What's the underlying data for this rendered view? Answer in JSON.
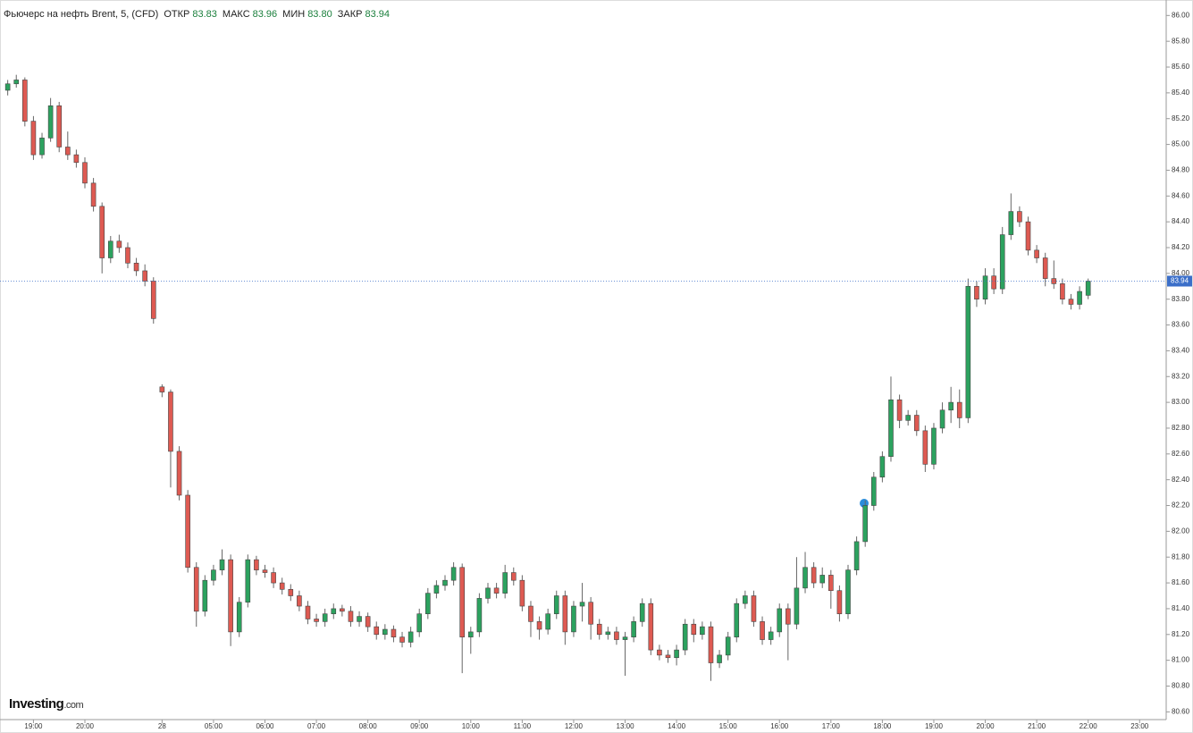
{
  "chart_data": {
    "type": "candlestick",
    "title": "Фьючерс на нефть Brent, 5, (CFD)",
    "ohlc_legend": [
      {
        "label": "ОТКР",
        "value": "83.83"
      },
      {
        "label": "МАКС",
        "value": "83.96"
      },
      {
        "label": "МИН",
        "value": "83.80"
      },
      {
        "label": "ЗАКР",
        "value": "83.94"
      }
    ],
    "logo": {
      "main": "Investing",
      "suffix": ".com"
    },
    "up_color": "#2ca25f",
    "down_color": "#de5a52",
    "last_price": {
      "value": 83.94,
      "label": "83.94"
    },
    "xlim": [
      -0.9,
      135.1
    ],
    "xticks": [
      {
        "value": 3,
        "label": "19:00"
      },
      {
        "value": 9,
        "label": "20:00"
      },
      {
        "value": 18,
        "label": "28"
      },
      {
        "value": 24,
        "label": "05:00"
      },
      {
        "value": 30,
        "label": "06:00"
      },
      {
        "value": 36,
        "label": "07:00"
      },
      {
        "value": 42,
        "label": "08:00"
      },
      {
        "value": 48,
        "label": "09:00"
      },
      {
        "value": 54,
        "label": "10:00"
      },
      {
        "value": 60,
        "label": "11:00"
      },
      {
        "value": 66,
        "label": "12:00"
      },
      {
        "value": 72,
        "label": "13:00"
      },
      {
        "value": 78,
        "label": "14:00"
      },
      {
        "value": 84,
        "label": "15:00"
      },
      {
        "value": 90,
        "label": "16:00"
      },
      {
        "value": 96,
        "label": "17:00"
      },
      {
        "value": 102,
        "label": "18:00"
      },
      {
        "value": 108,
        "label": "19:00"
      },
      {
        "value": 114,
        "label": "20:00"
      },
      {
        "value": 120,
        "label": "21:00"
      },
      {
        "value": 126,
        "label": "22:00"
      },
      {
        "value": 132,
        "label": "23:00"
      }
    ],
    "ylim": [
      80.54,
      86.12
    ],
    "yticks": [
      {
        "value": 80.6,
        "label": "80.60"
      },
      {
        "value": 80.8,
        "label": "80.80"
      },
      {
        "value": 81.0,
        "label": "81.00"
      },
      {
        "value": 81.2,
        "label": "81.20"
      },
      {
        "value": 81.4,
        "label": "81.40"
      },
      {
        "value": 81.6,
        "label": "81.60"
      },
      {
        "value": 81.8,
        "label": "81.80"
      },
      {
        "value": 82.0,
        "label": "82.00"
      },
      {
        "value": 82.2,
        "label": "82.20"
      },
      {
        "value": 82.4,
        "label": "82.40"
      },
      {
        "value": 82.6,
        "label": "82.60"
      },
      {
        "value": 82.8,
        "label": "82.80"
      },
      {
        "value": 83.0,
        "label": "83.00"
      },
      {
        "value": 83.2,
        "label": "83.20"
      },
      {
        "value": 83.4,
        "label": "83.40"
      },
      {
        "value": 83.6,
        "label": "83.60"
      },
      {
        "value": 83.8,
        "label": "83.80"
      },
      {
        "value": 84.0,
        "label": "84.00"
      },
      {
        "value": 84.2,
        "label": "84.20"
      },
      {
        "value": 84.4,
        "label": "84.40"
      },
      {
        "value": 84.6,
        "label": "84.60"
      },
      {
        "value": 84.8,
        "label": "84.80"
      },
      {
        "value": 85.0,
        "label": "85.00"
      },
      {
        "value": 85.2,
        "label": "85.20"
      },
      {
        "value": 85.4,
        "label": "85.40"
      },
      {
        "value": 85.6,
        "label": "85.60"
      },
      {
        "value": 85.8,
        "label": "85.80"
      },
      {
        "value": 86.0,
        "label": "86.00"
      }
    ],
    "candles": [
      [
        85.42,
        85.5,
        85.38,
        85.47
      ],
      [
        85.47,
        85.54,
        85.44,
        85.5
      ],
      [
        85.5,
        85.52,
        85.14,
        85.18
      ],
      [
        85.18,
        85.22,
        84.88,
        84.92
      ],
      [
        84.92,
        85.09,
        84.89,
        85.05
      ],
      [
        85.05,
        85.36,
        85.02,
        85.3
      ],
      [
        85.3,
        85.33,
        84.94,
        84.98
      ],
      [
        84.98,
        85.1,
        84.88,
        84.92
      ],
      [
        84.92,
        84.96,
        84.82,
        84.86
      ],
      [
        84.86,
        84.9,
        84.66,
        84.7
      ],
      [
        84.7,
        84.74,
        84.48,
        84.52
      ],
      [
        84.52,
        84.55,
        84.0,
        84.12
      ],
      [
        84.12,
        84.29,
        84.08,
        84.25
      ],
      [
        84.25,
        84.3,
        84.16,
        84.2
      ],
      [
        84.2,
        84.24,
        84.04,
        84.08
      ],
      [
        84.08,
        84.12,
        83.98,
        84.02
      ],
      [
        84.02,
        84.07,
        83.9,
        83.94
      ],
      [
        83.94,
        83.97,
        83.61,
        83.65
      ],
      [
        83.12,
        83.14,
        83.04,
        83.08
      ],
      [
        83.08,
        83.1,
        82.34,
        82.62
      ],
      [
        82.62,
        82.66,
        82.24,
        82.28
      ],
      [
        82.28,
        82.32,
        81.68,
        81.72
      ],
      [
        81.72,
        81.76,
        81.26,
        81.38
      ],
      [
        81.38,
        81.66,
        81.34,
        81.62
      ],
      [
        81.62,
        81.74,
        81.58,
        81.7
      ],
      [
        81.7,
        81.86,
        81.66,
        81.78
      ],
      [
        81.78,
        81.82,
        81.11,
        81.22
      ],
      [
        81.22,
        81.49,
        81.18,
        81.45
      ],
      [
        81.45,
        81.82,
        81.41,
        81.78
      ],
      [
        81.78,
        81.81,
        81.66,
        81.7
      ],
      [
        81.7,
        81.74,
        81.64,
        81.68
      ],
      [
        81.68,
        81.72,
        81.56,
        81.6
      ],
      [
        81.6,
        81.64,
        81.51,
        81.55
      ],
      [
        81.55,
        81.59,
        81.46,
        81.5
      ],
      [
        81.5,
        81.54,
        81.38,
        81.42
      ],
      [
        81.42,
        81.46,
        81.28,
        81.32
      ],
      [
        81.32,
        81.36,
        81.26,
        81.3
      ],
      [
        81.3,
        81.4,
        81.26,
        81.36
      ],
      [
        81.36,
        81.44,
        81.32,
        81.4
      ],
      [
        81.4,
        81.43,
        81.34,
        81.38
      ],
      [
        81.38,
        81.42,
        81.26,
        81.3
      ],
      [
        81.3,
        81.38,
        81.26,
        81.34
      ],
      [
        81.34,
        81.37,
        81.22,
        81.26
      ],
      [
        81.26,
        81.3,
        81.16,
        81.2
      ],
      [
        81.2,
        81.28,
        81.16,
        81.24
      ],
      [
        81.24,
        81.27,
        81.14,
        81.18
      ],
      [
        81.18,
        81.22,
        81.1,
        81.14
      ],
      [
        81.14,
        81.26,
        81.1,
        81.22
      ],
      [
        81.22,
        81.4,
        81.18,
        81.36
      ],
      [
        81.36,
        81.56,
        81.32,
        81.52
      ],
      [
        81.52,
        81.62,
        81.48,
        81.58
      ],
      [
        81.58,
        81.66,
        81.54,
        81.62
      ],
      [
        81.62,
        81.76,
        81.58,
        81.72
      ],
      [
        81.72,
        81.75,
        80.9,
        81.18
      ],
      [
        81.18,
        81.26,
        81.05,
        81.22
      ],
      [
        81.22,
        81.52,
        81.18,
        81.48
      ],
      [
        81.48,
        81.6,
        81.44,
        81.56
      ],
      [
        81.56,
        81.6,
        81.48,
        81.52
      ],
      [
        81.52,
        81.74,
        81.48,
        81.68
      ],
      [
        81.68,
        81.72,
        81.58,
        81.62
      ],
      [
        81.62,
        81.66,
        81.38,
        81.42
      ],
      [
        81.42,
        81.46,
        81.18,
        81.3
      ],
      [
        81.3,
        81.34,
        81.16,
        81.24
      ],
      [
        81.24,
        81.4,
        81.2,
        81.36
      ],
      [
        81.36,
        81.54,
        81.32,
        81.5
      ],
      [
        81.5,
        81.54,
        81.12,
        81.22
      ],
      [
        81.22,
        81.46,
        81.18,
        81.42
      ],
      [
        81.42,
        81.6,
        81.3,
        81.45
      ],
      [
        81.45,
        81.49,
        81.16,
        81.28
      ],
      [
        81.28,
        81.32,
        81.16,
        81.2
      ],
      [
        81.2,
        81.26,
        81.16,
        81.22
      ],
      [
        81.22,
        81.26,
        81.12,
        81.16
      ],
      [
        81.16,
        81.22,
        80.88,
        81.18
      ],
      [
        81.18,
        81.34,
        81.14,
        81.3
      ],
      [
        81.3,
        81.48,
        81.26,
        81.44
      ],
      [
        81.44,
        81.48,
        81.04,
        81.08
      ],
      [
        81.08,
        81.12,
        81.0,
        81.04
      ],
      [
        81.04,
        81.08,
        80.98,
        81.02
      ],
      [
        81.02,
        81.12,
        80.96,
        81.08
      ],
      [
        81.08,
        81.32,
        81.04,
        81.28
      ],
      [
        81.28,
        81.32,
        81.14,
        81.2
      ],
      [
        81.2,
        81.3,
        81.16,
        81.26
      ],
      [
        81.26,
        81.3,
        80.84,
        80.98
      ],
      [
        80.98,
        81.08,
        80.94,
        81.04
      ],
      [
        81.04,
        81.22,
        81.0,
        81.18
      ],
      [
        81.18,
        81.48,
        81.14,
        81.44
      ],
      [
        81.44,
        81.54,
        81.4,
        81.5
      ],
      [
        81.5,
        81.54,
        81.26,
        81.3
      ],
      [
        81.3,
        81.34,
        81.12,
        81.16
      ],
      [
        81.16,
        81.26,
        81.12,
        81.22
      ],
      [
        81.22,
        81.44,
        81.18,
        81.4
      ],
      [
        81.4,
        81.44,
        81.0,
        81.28
      ],
      [
        81.28,
        81.8,
        81.24,
        81.56
      ],
      [
        81.56,
        81.84,
        81.52,
        81.72
      ],
      [
        81.72,
        81.76,
        81.56,
        81.6
      ],
      [
        81.6,
        81.72,
        81.56,
        81.66
      ],
      [
        81.66,
        81.7,
        81.4,
        81.54
      ],
      [
        81.54,
        81.58,
        81.3,
        81.36
      ],
      [
        81.36,
        81.74,
        81.32,
        81.7
      ],
      [
        81.7,
        81.96,
        81.66,
        81.92
      ],
      [
        81.92,
        82.24,
        81.88,
        82.2
      ],
      [
        82.2,
        82.46,
        82.16,
        82.42
      ],
      [
        82.42,
        82.62,
        82.38,
        82.58
      ],
      [
        82.58,
        83.2,
        82.54,
        83.02
      ],
      [
        83.02,
        83.06,
        82.8,
        82.86
      ],
      [
        82.86,
        82.94,
        82.82,
        82.9
      ],
      [
        82.9,
        82.94,
        82.74,
        82.78
      ],
      [
        82.78,
        82.82,
        82.46,
        82.52
      ],
      [
        82.52,
        82.84,
        82.48,
        82.8
      ],
      [
        82.8,
        83.0,
        82.76,
        82.94
      ],
      [
        82.94,
        83.12,
        82.84,
        83.0
      ],
      [
        83.0,
        83.1,
        82.8,
        82.88
      ],
      [
        82.88,
        83.96,
        82.84,
        83.9
      ],
      [
        83.9,
        83.94,
        83.74,
        83.8
      ],
      [
        83.8,
        84.04,
        83.76,
        83.98
      ],
      [
        83.98,
        84.04,
        83.84,
        83.88
      ],
      [
        83.88,
        84.36,
        83.84,
        84.3
      ],
      [
        84.3,
        84.62,
        84.26,
        84.48
      ],
      [
        84.48,
        84.52,
        84.36,
        84.4
      ],
      [
        84.4,
        84.44,
        84.14,
        84.18
      ],
      [
        84.18,
        84.22,
        84.08,
        84.12
      ],
      [
        84.12,
        84.16,
        83.9,
        83.96
      ],
      [
        83.96,
        84.1,
        83.88,
        83.92
      ],
      [
        83.92,
        83.96,
        83.76,
        83.8
      ],
      [
        83.8,
        83.84,
        83.72,
        83.76
      ],
      [
        83.76,
        83.9,
        83.72,
        83.86
      ],
      [
        83.83,
        83.96,
        83.8,
        83.94
      ]
    ]
  }
}
